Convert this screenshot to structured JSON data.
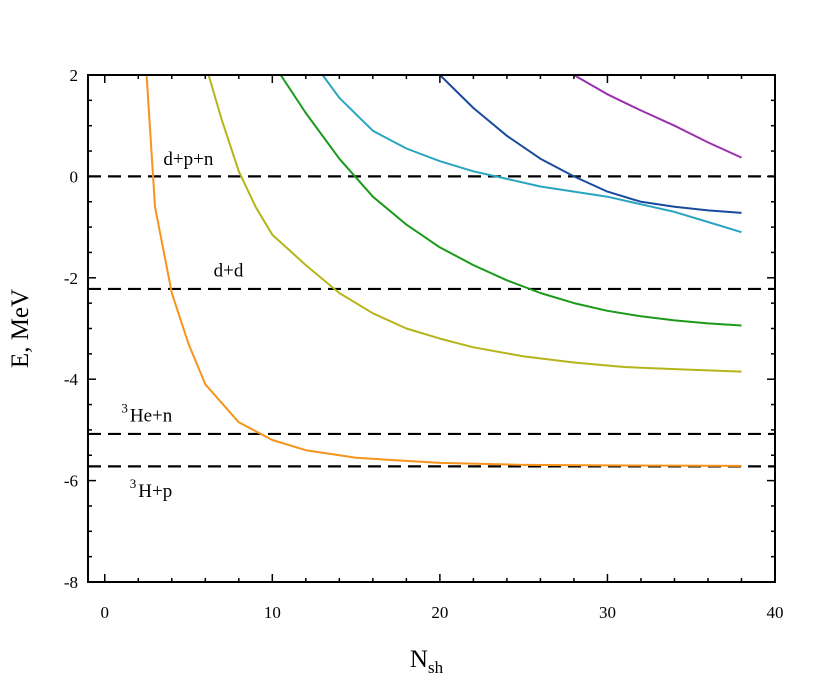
{
  "chart_data": {
    "type": "line",
    "title": "",
    "xlabel": "N",
    "xlabel_sub": "sh",
    "ylabel": "E, MeV",
    "xlim": [
      -1,
      40
    ],
    "ylim": [
      -8,
      2
    ],
    "xticks": [
      0,
      10,
      20,
      30,
      40
    ],
    "xtick_labels": [
      "0",
      "10",
      "20",
      "30",
      "40"
    ],
    "yticks": [
      2,
      0,
      -2,
      -4,
      -6,
      -8
    ],
    "ytick_labels": [
      "2",
      "0",
      "-2",
      "-4",
      "-6",
      "-8"
    ],
    "grid": false,
    "series": [
      {
        "color": "#f7941d",
        "points": [
          [
            2.5,
            2.0
          ],
          [
            3.0,
            -0.6
          ],
          [
            4.0,
            -2.3
          ],
          [
            5.0,
            -3.3
          ],
          [
            6.0,
            -4.1
          ],
          [
            8.0,
            -4.85
          ],
          [
            10.0,
            -5.2
          ],
          [
            12.0,
            -5.4
          ],
          [
            15.0,
            -5.55
          ],
          [
            20.0,
            -5.65
          ],
          [
            25.0,
            -5.69
          ],
          [
            30.0,
            -5.7
          ],
          [
            38.0,
            -5.71
          ]
        ]
      },
      {
        "color": "#b5b51b",
        "points": [
          [
            6.2,
            2.0
          ],
          [
            7.0,
            1.1
          ],
          [
            8.0,
            0.1
          ],
          [
            9.0,
            -0.6
          ],
          [
            10.0,
            -1.15
          ],
          [
            12.0,
            -1.75
          ],
          [
            14.0,
            -2.3
          ],
          [
            16.0,
            -2.7
          ],
          [
            18.0,
            -3.0
          ],
          [
            20.0,
            -3.2
          ],
          [
            22.0,
            -3.37
          ],
          [
            25.0,
            -3.55
          ],
          [
            28.0,
            -3.67
          ],
          [
            31.0,
            -3.76
          ],
          [
            34.0,
            -3.8
          ],
          [
            38.0,
            -3.85
          ]
        ]
      },
      {
        "color": "#1a9a1a",
        "points": [
          [
            10.5,
            2.0
          ],
          [
            12.0,
            1.25
          ],
          [
            14.0,
            0.35
          ],
          [
            16.0,
            -0.4
          ],
          [
            18.0,
            -0.95
          ],
          [
            20.0,
            -1.4
          ],
          [
            22.0,
            -1.75
          ],
          [
            24.0,
            -2.05
          ],
          [
            26.0,
            -2.3
          ],
          [
            28.0,
            -2.5
          ],
          [
            30.0,
            -2.65
          ],
          [
            32.0,
            -2.76
          ],
          [
            34.0,
            -2.84
          ],
          [
            36.0,
            -2.9
          ],
          [
            38.0,
            -2.94
          ]
        ]
      },
      {
        "color": "#29a5c0",
        "points": [
          [
            13.0,
            2.0
          ],
          [
            14.0,
            1.55
          ],
          [
            16.0,
            0.9
          ],
          [
            18.0,
            0.55
          ],
          [
            20.0,
            0.3
          ],
          [
            22.0,
            0.1
          ],
          [
            24.0,
            -0.05
          ],
          [
            26.0,
            -0.2
          ],
          [
            28.0,
            -0.3
          ],
          [
            30.0,
            -0.4
          ],
          [
            32.0,
            -0.55
          ],
          [
            34.0,
            -0.7
          ],
          [
            36.0,
            -0.9
          ],
          [
            38.0,
            -1.1
          ]
        ]
      },
      {
        "color": "#1a4a9e",
        "points": [
          [
            20.0,
            2.0
          ],
          [
            22.0,
            1.35
          ],
          [
            24.0,
            0.8
          ],
          [
            26.0,
            0.35
          ],
          [
            28.0,
            0.0
          ],
          [
            30.0,
            -0.3
          ],
          [
            32.0,
            -0.5
          ],
          [
            34.0,
            -0.6
          ],
          [
            36.0,
            -0.67
          ],
          [
            38.0,
            -0.72
          ]
        ]
      },
      {
        "color": "#9b2fae",
        "points": [
          [
            28.0,
            2.0
          ],
          [
            30.0,
            1.62
          ],
          [
            32.0,
            1.3
          ],
          [
            34.0,
            1.0
          ],
          [
            36.0,
            0.67
          ],
          [
            38.0,
            0.37
          ]
        ]
      }
    ],
    "thresholds": [
      {
        "y": 0.0,
        "label": "d+p+n",
        "label_x": 3.5,
        "label_y": 0.22,
        "sup": ""
      },
      {
        "y": -2.22,
        "label": "d+d",
        "label_x": 6.5,
        "label_y": -1.97,
        "sup": ""
      },
      {
        "y": -5.08,
        "label": "He+n",
        "label_x": 1.5,
        "label_y": -4.83,
        "sup": "3"
      },
      {
        "y": -5.72,
        "label": "H+p",
        "label_x": 2.0,
        "label_y": -6.32,
        "sup": "3"
      }
    ]
  }
}
